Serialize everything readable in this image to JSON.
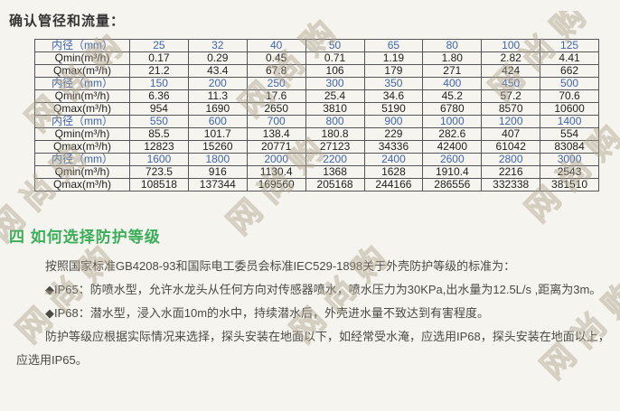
{
  "page": {
    "watermark_text": "网尚购"
  },
  "colors": {
    "background": "#f6f4ee",
    "table_border": "#55565a",
    "diameter_row_blue": "#4066ad",
    "table_value_ink": "#1f1f1f",
    "heading_green": "#3bae5a",
    "body_text": "#4b4a45",
    "title_text": "#343434"
  },
  "section1": {
    "title": "确认管径和流量：",
    "table": {
      "rows": [
        {
          "type": "diameter",
          "label": "内径（mm）",
          "values": [
            "25",
            "32",
            "40",
            "50",
            "65",
            "80",
            "100",
            "125"
          ]
        },
        {
          "type": "qmin",
          "label": "Qmin(m³/h)",
          "values": [
            "0.17",
            "0.29",
            "0.45",
            "0.71",
            "1.19",
            "1.80",
            "2.82",
            "4.41"
          ]
        },
        {
          "type": "qmax",
          "label": "Qmax(m³/h)",
          "values": [
            "21.2",
            "43.4",
            "67.8",
            "106",
            "179",
            "271",
            "424",
            "662"
          ]
        },
        {
          "type": "diameter",
          "label": "内径（mm）",
          "values": [
            "150",
            "200",
            "250",
            "300",
            "350",
            "400",
            "450",
            "500"
          ]
        },
        {
          "type": "qmin",
          "label": "Qmin(m³/h)",
          "values": [
            "6.36",
            "11.3",
            "17.6",
            "25.4",
            "34.6",
            "45.2",
            "57.2",
            "70.6"
          ]
        },
        {
          "type": "qmax",
          "label": "Qmax(m³/h)",
          "values": [
            "954",
            "1690",
            "2650",
            "3810",
            "5190",
            "6780",
            "8570",
            "10600"
          ]
        },
        {
          "type": "diameter",
          "label": "内径（mm）",
          "values": [
            "550",
            "600",
            "700",
            "800",
            "900",
            "1000",
            "1200",
            "1400"
          ]
        },
        {
          "type": "qmin",
          "label": "Qmin(m³/h)",
          "values": [
            "85.5",
            "101.7",
            "138.4",
            "180.8",
            "229",
            "282.6",
            "407",
            "554"
          ]
        },
        {
          "type": "qmax",
          "label": "Qmax(m³/h)",
          "values": [
            "12823",
            "15260",
            "20771",
            "27123",
            "34336",
            "42400",
            "61042",
            "83084"
          ]
        },
        {
          "type": "diameter",
          "label": "内径（mm）",
          "values": [
            "1600",
            "1800",
            "2000",
            "2200",
            "2400",
            "2600",
            "2800",
            "3000"
          ]
        },
        {
          "type": "qmin",
          "label": "Qmin(m³/h)",
          "values": [
            "723.5",
            "916",
            "1130.4",
            "1368",
            "1628",
            "1910.4",
            "2216",
            "2543"
          ]
        },
        {
          "type": "qmax",
          "label": "Qmax(m³/h)",
          "values": [
            "108518",
            "137344",
            "169560",
            "205168",
            "244166",
            "286556",
            "332338",
            "381510"
          ]
        }
      ]
    }
  },
  "section2": {
    "heading": "四 如何选择防护等级",
    "paragraphs": [
      "按照国家标准GB4208-93和国际电工委员会标准IEC529-1898关于外壳防护等级的标准为：",
      "◆IP65：防喷水型，允许水龙头从任何方向对传感器喷水，喷水压力为30KPa,出水量为12.5L/s ,距离为3m。",
      "◆IP68：潜水型，浸入水面10m的水中，持续潜水后，外壳进水量不致达到有害程度。",
      "防护等级应根据实际情况来选择，探头安装在地面以下，如经常受水淹，应选用IP68，探头安装在地面以上，应选用IP65。"
    ]
  }
}
